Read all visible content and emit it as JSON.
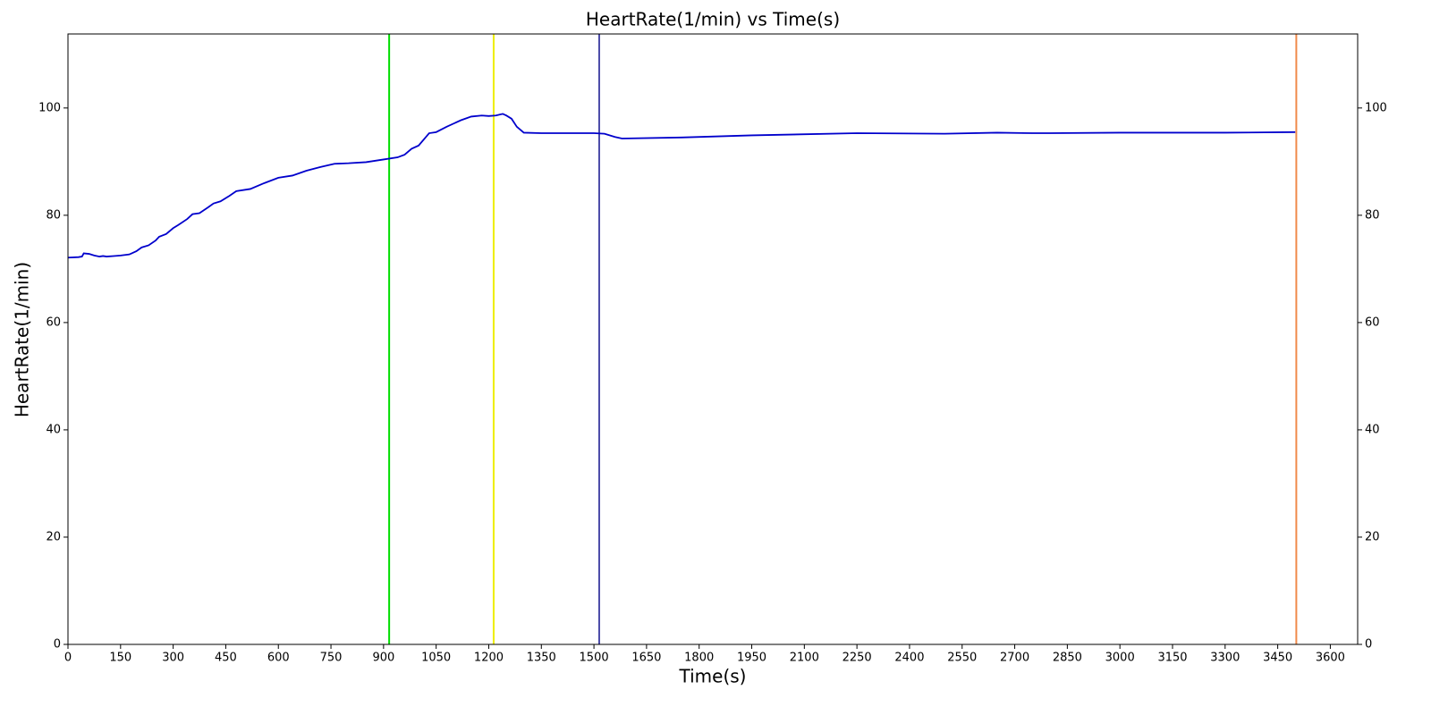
{
  "chart_data": {
    "type": "line",
    "title": "HeartRate(1/min) vs Time(s)",
    "x_label": "Time(s)",
    "y_label": "HeartRate(1/min)",
    "x": [
      0,
      30,
      40,
      45,
      60,
      75,
      90,
      100,
      110,
      130,
      150,
      175,
      195,
      210,
      230,
      250,
      260,
      280,
      300,
      315,
      340,
      355,
      375,
      400,
      415,
      435,
      460,
      480,
      520,
      560,
      600,
      640,
      680,
      720,
      760,
      800,
      850,
      900,
      940,
      960,
      980,
      1000,
      1030,
      1050,
      1080,
      1120,
      1150,
      1180,
      1200,
      1220,
      1240,
      1250,
      1265,
      1280,
      1300,
      1350,
      1450,
      1500,
      1530,
      1560,
      1580,
      1750,
      1950,
      2250,
      2500,
      2650,
      2750,
      2800,
      3000,
      3100,
      3300,
      3500
    ],
    "series": [
      {
        "name": "HeartRate",
        "color": "#0000cc",
        "values": [
          72.1,
          72.2,
          72.3,
          72.9,
          72.8,
          72.5,
          72.3,
          72.4,
          72.3,
          72.4,
          72.5,
          72.7,
          73.3,
          74,
          74.4,
          75.3,
          76,
          76.5,
          77.6,
          78.2,
          79.3,
          80.2,
          80.4,
          81.5,
          82.2,
          82.6,
          83.6,
          84.5,
          84.9,
          86,
          87,
          87.4,
          88.3,
          89,
          89.6,
          89.7,
          89.9,
          90.4,
          90.8,
          91.3,
          92.4,
          93,
          95.3,
          95.5,
          96.5,
          97.7,
          98.4,
          98.6,
          98.5,
          98.6,
          98.9,
          98.6,
          98,
          96.5,
          95.4,
          95.3,
          95.3,
          95.3,
          95.2,
          94.6,
          94.3,
          94.5,
          94.9,
          95.3,
          95.2,
          95.4,
          95.3,
          95.3,
          95.4,
          95.4,
          95.4,
          95.5
        ]
      }
    ],
    "markers": [
      {
        "x": 916,
        "color": "#00dd00"
      },
      {
        "x": 1214,
        "color": "#eeee00"
      },
      {
        "x": 1515,
        "color": "#4a4aa8"
      },
      {
        "x": 3503,
        "color": "#f08a4b"
      }
    ],
    "xlim": [
      0,
      3678
    ],
    "ylim": [
      0,
      113.8
    ],
    "xticks": [
      0,
      150,
      300,
      450,
      600,
      750,
      900,
      1050,
      1200,
      1350,
      1500,
      1650,
      1800,
      1950,
      2100,
      2250,
      2400,
      2550,
      2700,
      2850,
      3000,
      3150,
      3300,
      3450,
      3600
    ],
    "yticks": [
      0,
      20,
      40,
      60,
      80,
      100
    ]
  }
}
